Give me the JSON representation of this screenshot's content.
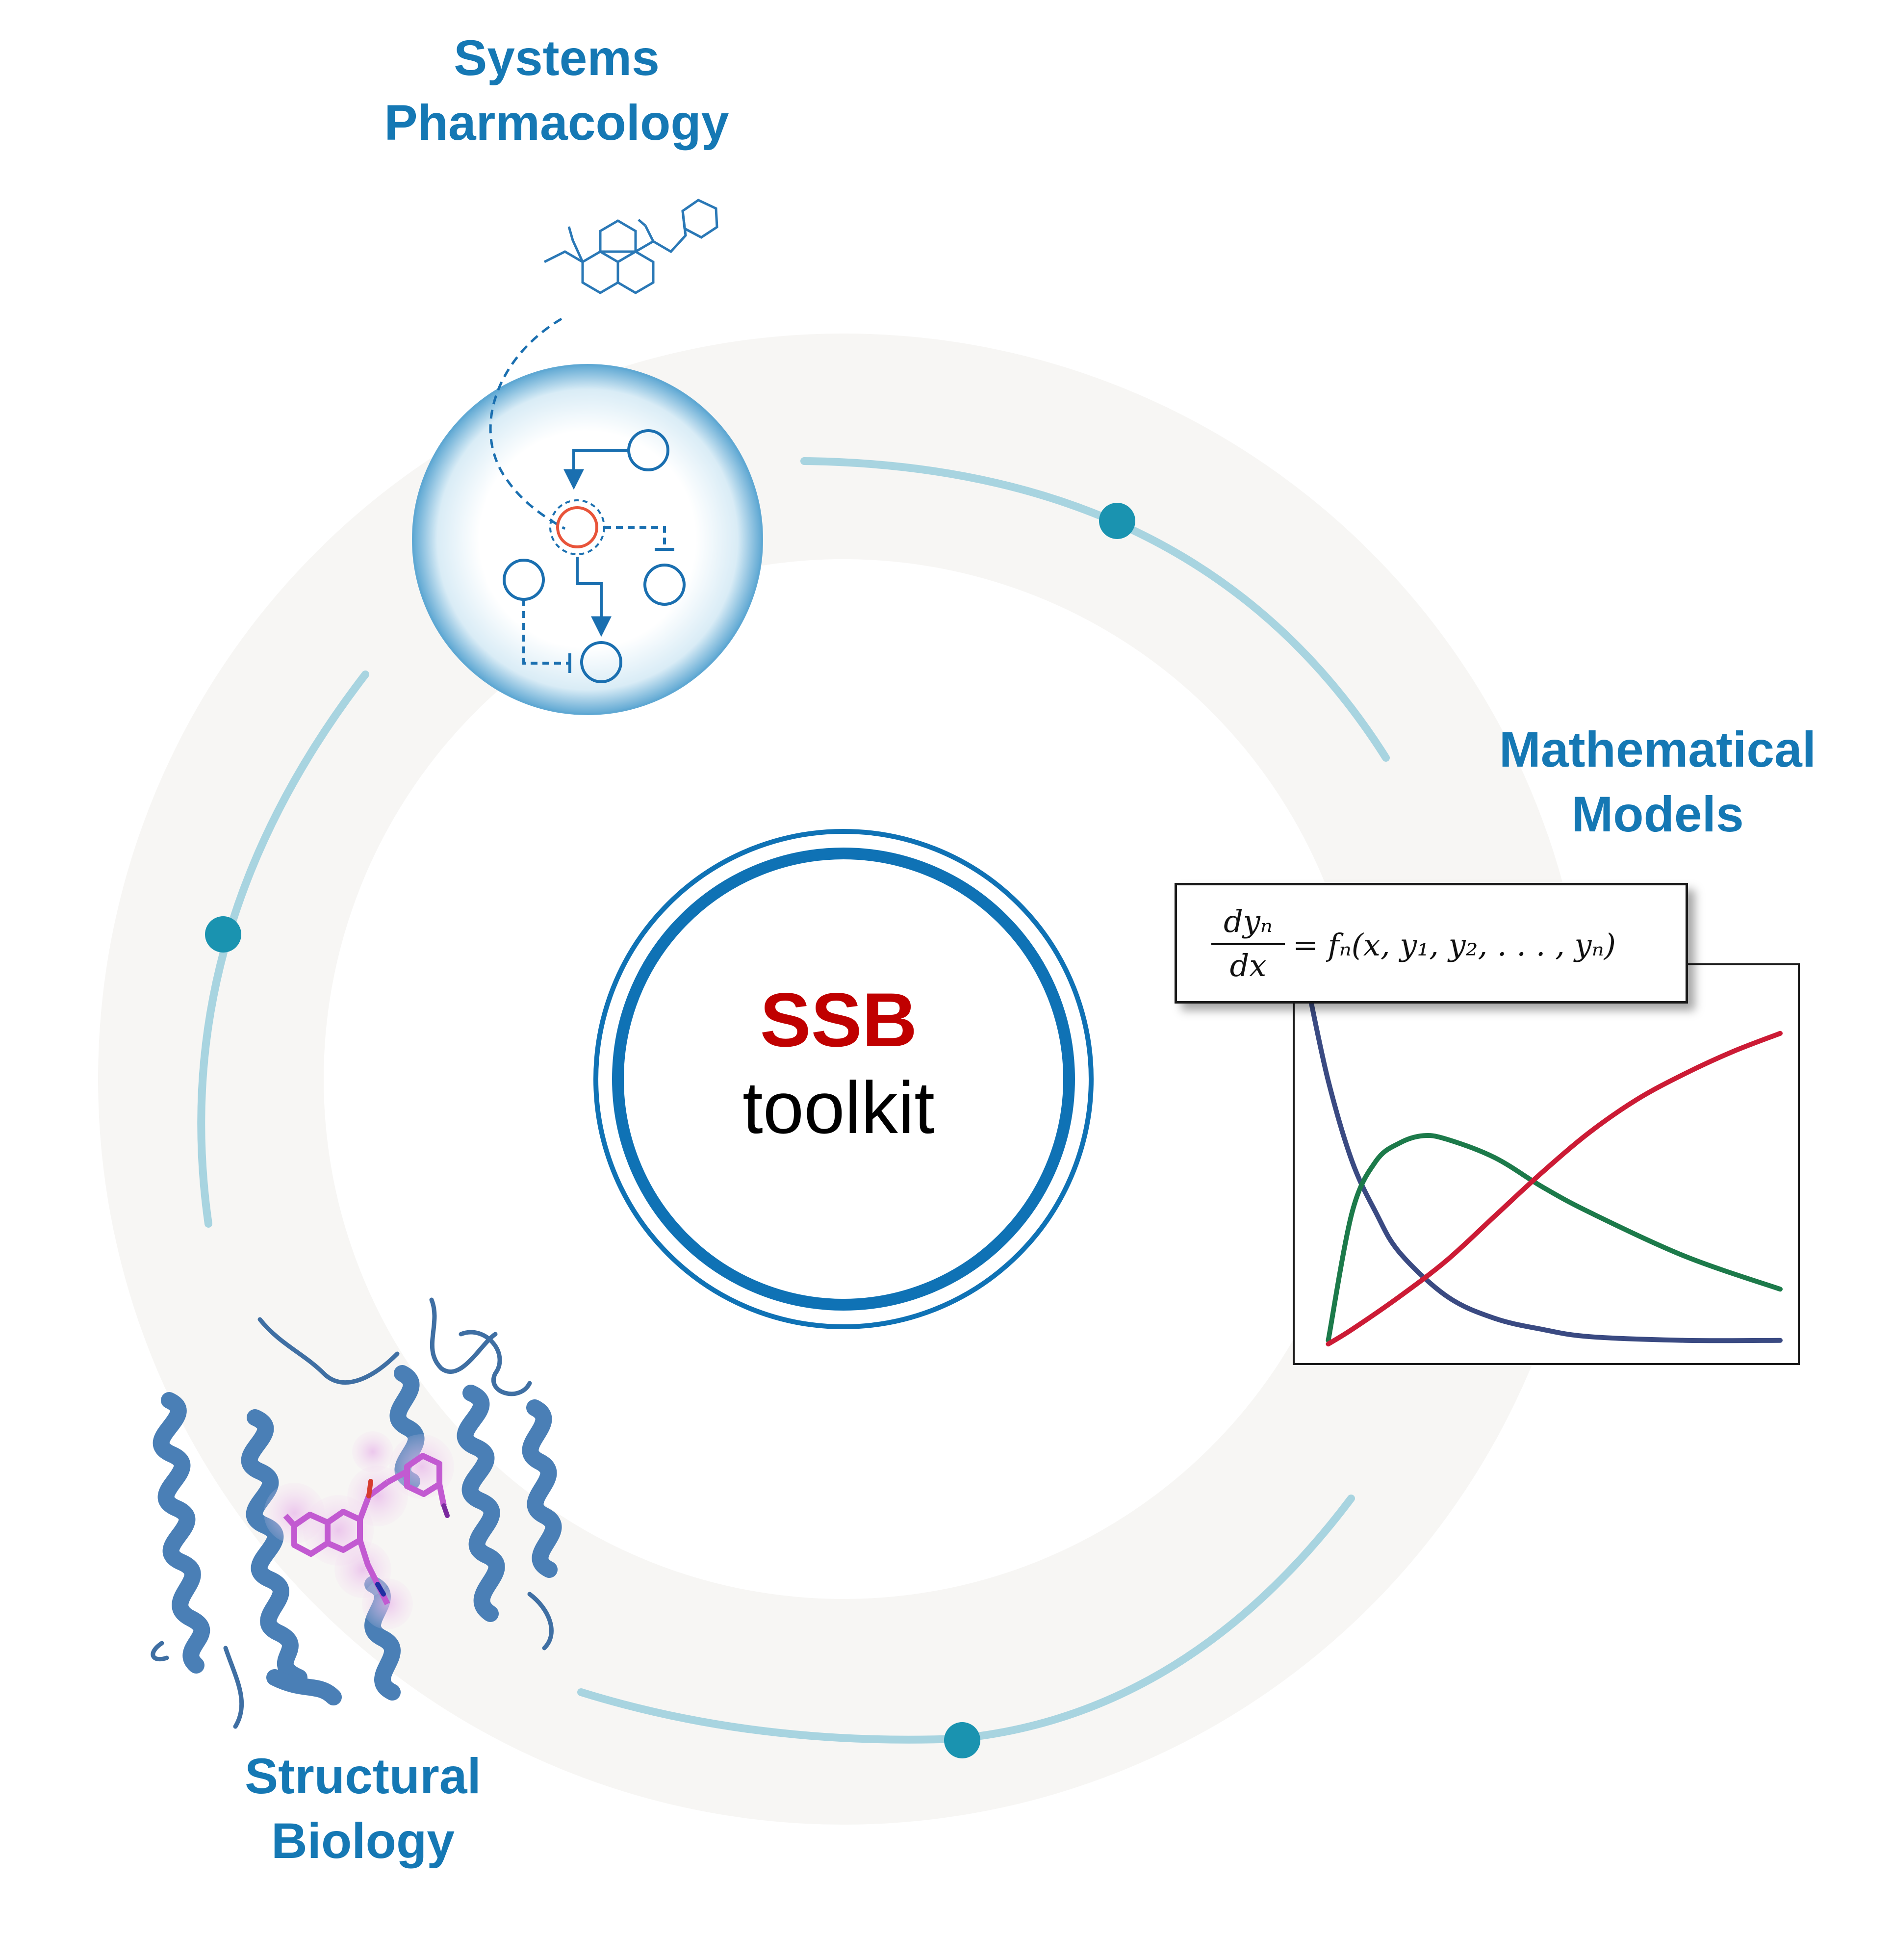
{
  "labels": {
    "systems_pharmacology": [
      "Systems",
      "Pharmacology"
    ],
    "mathematical_models": [
      "Mathematical",
      "Models"
    ],
    "structural_biology": [
      "Structural",
      "Biology"
    ]
  },
  "center": {
    "title": "SSB",
    "subtitle": "toolkit"
  },
  "equation": {
    "numerator": "dyₙ",
    "denominator": "dx",
    "rhs": "= fₙ(x, y₁, y₂, . . . , yₙ)"
  },
  "colors": {
    "label_blue": "#1578b4",
    "ssb_red": "#c00000",
    "ring_blue": "#0f72b5",
    "arc_light_blue": "#a8d4e0",
    "dot_teal": "#1a93b0",
    "band_gray": "#f7f6f4",
    "curve_blue": "#3a4a82",
    "curve_green": "#1c7a4a",
    "curve_red": "#cc1b35",
    "protein_blue": "#4a7fb6",
    "ligand_magenta": "#c25ad1"
  },
  "chart_data": {
    "type": "line",
    "title": "",
    "xlabel": "",
    "ylabel": "",
    "xlim": [
      0,
      10
    ],
    "ylim": [
      0,
      1
    ],
    "series": [
      {
        "color": "#3a4a82",
        "x": [
          0.1,
          0.5,
          1,
          1.5,
          2,
          3,
          4,
          5,
          6,
          8,
          10
        ],
        "y": [
          0.98,
          0.74,
          0.52,
          0.38,
          0.27,
          0.15,
          0.09,
          0.06,
          0.04,
          0.03,
          0.03
        ]
      },
      {
        "color": "#1c7a4a",
        "x": [
          0.5,
          1,
          1.5,
          2,
          2.5,
          3,
          4,
          5,
          6,
          8,
          10
        ],
        "y": [
          0.03,
          0.38,
          0.52,
          0.57,
          0.59,
          0.58,
          0.53,
          0.45,
          0.38,
          0.26,
          0.17
        ]
      },
      {
        "color": "#cc1b35",
        "x": [
          0.5,
          1,
          2,
          3,
          4,
          5,
          6,
          7,
          8,
          9,
          10
        ],
        "y": [
          0.02,
          0.06,
          0.15,
          0.25,
          0.37,
          0.49,
          0.6,
          0.69,
          0.76,
          0.82,
          0.87
        ]
      }
    ]
  }
}
